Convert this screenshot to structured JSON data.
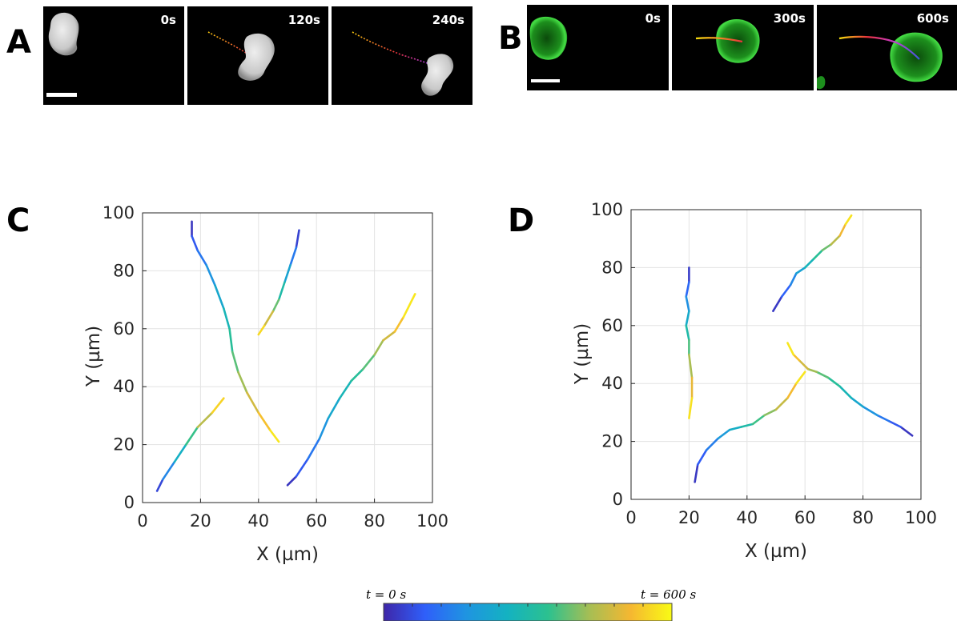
{
  "panels": {
    "A": {
      "letter": "A",
      "times": [
        "0s",
        "120s",
        "240s"
      ]
    },
    "B": {
      "letter": "B",
      "times": [
        "0s",
        "300s",
        "600s"
      ]
    },
    "C": {
      "letter": "C"
    },
    "D": {
      "letter": "D"
    }
  },
  "colormap": [
    "#3e26a8",
    "#2f5ffa",
    "#1f94e1",
    "#14b2c1",
    "#2cc18f",
    "#a6be54",
    "#f5b731",
    "#f9fb15"
  ],
  "colorbar": {
    "start_label": "t = 0 s",
    "end_label": "t = 600 s",
    "tmin": 0,
    "tmax": 600
  },
  "chart_data": [
    {
      "type": "line",
      "panel": "C",
      "title": "",
      "xlabel": "X (µm)",
      "ylabel": "Y (µm)",
      "xlim": [
        0,
        100
      ],
      "ylim": [
        0,
        100
      ],
      "xticks": [
        0,
        20,
        40,
        60,
        80,
        100
      ],
      "yticks": [
        0,
        20,
        40,
        60,
        80,
        100
      ],
      "grid": true,
      "color_encodes": "time (0–600 s)",
      "series": [
        {
          "x": [
            17,
            17,
            19,
            22,
            25,
            28,
            30,
            31,
            33,
            36,
            40,
            44,
            47
          ],
          "y": [
            97,
            92,
            87,
            82,
            75,
            67,
            60,
            52,
            45,
            38,
            31,
            25,
            21
          ]
        },
        {
          "x": [
            54,
            53,
            51,
            49,
            47,
            45,
            42,
            40
          ],
          "y": [
            94,
            88,
            82,
            76,
            70,
            66,
            61,
            58
          ]
        },
        {
          "x": [
            5,
            7,
            11,
            15,
            19,
            24,
            28
          ],
          "y": [
            4,
            8,
            14,
            20,
            26,
            31,
            36
          ]
        },
        {
          "x": [
            50,
            53,
            57,
            61,
            64,
            68,
            72,
            76,
            80,
            83,
            87,
            90,
            94
          ],
          "y": [
            6,
            9,
            15,
            22,
            29,
            36,
            42,
            46,
            51,
            56,
            59,
            64,
            72
          ]
        }
      ]
    },
    {
      "type": "line",
      "panel": "D",
      "title": "",
      "xlabel": "X (µm)",
      "ylabel": "Y (µm)",
      "xlim": [
        0,
        100
      ],
      "ylim": [
        0,
        100
      ],
      "xticks": [
        0,
        20,
        40,
        60,
        80,
        100
      ],
      "yticks": [
        0,
        20,
        40,
        60,
        80,
        100
      ],
      "grid": true,
      "color_encodes": "time (0–600 s)",
      "series": [
        {
          "x": [
            20,
            20,
            19,
            20,
            19,
            20,
            20,
            21,
            21,
            20
          ],
          "y": [
            80,
            75,
            70,
            65,
            60,
            55,
            50,
            42,
            35,
            28
          ]
        },
        {
          "x": [
            49,
            52,
            55,
            57,
            60,
            63,
            66,
            69,
            72,
            74,
            76
          ],
          "y": [
            65,
            70,
            74,
            78,
            80,
            83,
            86,
            88,
            91,
            95,
            98
          ]
        },
        {
          "x": [
            22,
            23,
            26,
            30,
            34,
            38,
            42,
            46,
            50,
            54,
            57,
            60
          ],
          "y": [
            6,
            12,
            17,
            21,
            24,
            25,
            26,
            29,
            31,
            35,
            40,
            44
          ]
        },
        {
          "x": [
            97,
            93,
            89,
            85,
            80,
            76,
            72,
            68,
            64,
            61,
            58,
            56,
            54
          ],
          "y": [
            22,
            25,
            27,
            29,
            32,
            35,
            39,
            42,
            44,
            45,
            48,
            50,
            54
          ]
        }
      ]
    }
  ]
}
